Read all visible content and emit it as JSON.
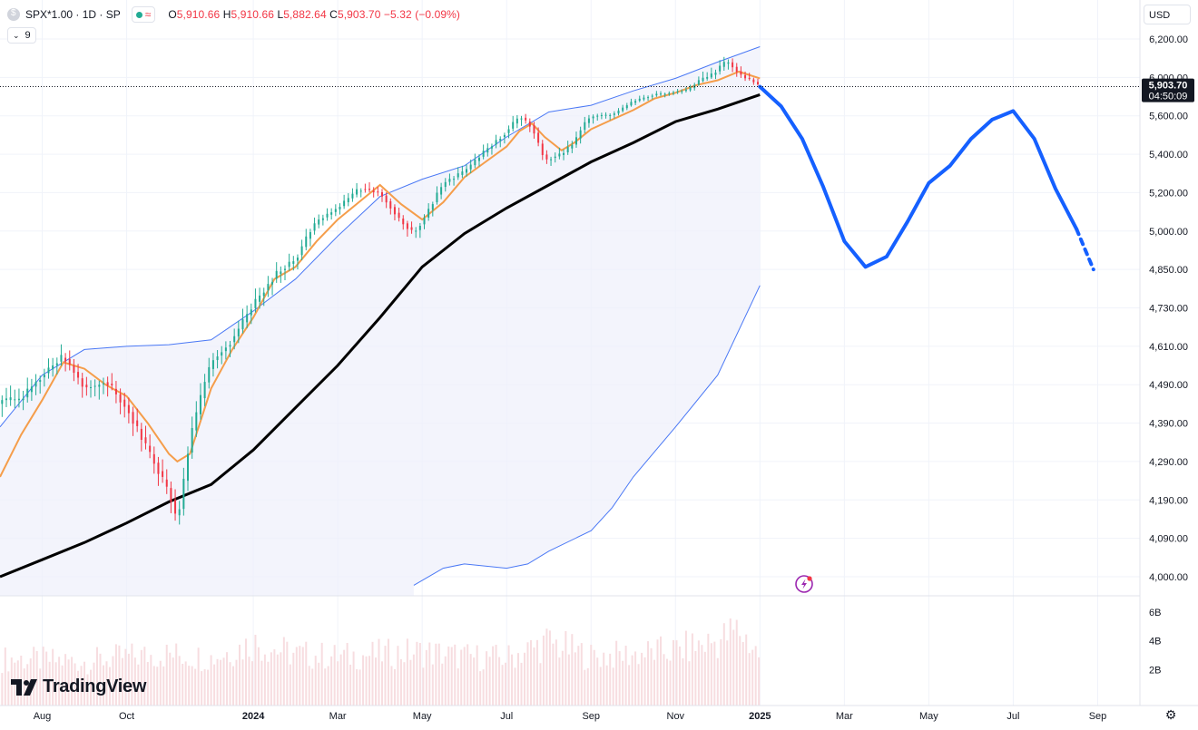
{
  "legend": {
    "symbol": "SPX*1.00 · 1D · SP",
    "open": "5,910.66",
    "high": "5,910.66",
    "low": "5,882.64",
    "close": "5,903.70",
    "change": "−5.32 (−0.09%)",
    "indicator_count": "9"
  },
  "currency": "USD",
  "price_label": {
    "value": "5,903.70",
    "countdown": "04:50:09"
  },
  "brand": "TradingView",
  "colors": {
    "up": "#22ab94",
    "down": "#f23645",
    "sma_fast": "#f59d4a",
    "sma_slow": "#000000",
    "band": "#4a78f5",
    "band_fill": "#eef0fb",
    "projection": "#1560ff",
    "grid": "#f0f3fa",
    "volume": "#f7dde0"
  },
  "chart_data": {
    "type": "line",
    "title": "SPX*1.00 · 1D · SP",
    "price_axis_ticks": [
      6200,
      6000,
      5600,
      5400,
      5200,
      5000,
      4850,
      4730,
      4610,
      4490,
      4390,
      4290,
      4190,
      4090,
      4000
    ],
    "price_axis_labels": [
      "6,200.00",
      "6,000.00",
      "5,600.00",
      "5,400.00",
      "5,200.00",
      "5,000.00",
      "4,850.00",
      "4,730.00",
      "4,610.00",
      "4,490.00",
      "4,390.00",
      "4,290.00",
      "4,190.00",
      "4,090.00",
      "4,000.00"
    ],
    "volume_axis_ticks": [
      6,
      4,
      2
    ],
    "volume_axis_labels": [
      "6B",
      "4B",
      "2B"
    ],
    "time_axis_labels": [
      "Aug",
      "Oct",
      "2024",
      "Mar",
      "May",
      "Jul",
      "Sep",
      "Nov",
      "2025",
      "Mar",
      "May",
      "Jul",
      "Sep"
    ],
    "time_axis_bold": [
      false,
      false,
      true,
      false,
      false,
      false,
      false,
      false,
      true,
      false,
      false,
      false,
      false
    ],
    "time_axis_t": [
      1,
      3,
      6,
      8,
      10,
      12,
      14,
      16,
      18,
      20,
      22,
      24,
      26
    ],
    "time_axis_note": "t in months since July 2023",
    "ylim": [
      3980,
      6260
    ],
    "xlim": [
      0.0,
      27.0
    ],
    "grid": true,
    "series": [
      {
        "key": "price",
        "x": [
          0.5,
          1.0,
          1.5,
          2.0,
          2.5,
          3.0,
          3.5,
          4.0,
          4.2,
          4.5,
          5.0,
          5.5,
          6.0,
          6.5,
          7.0,
          7.5,
          8.0,
          8.5,
          9.0,
          9.5,
          9.8,
          10.0,
          10.5,
          11.0,
          11.5,
          12.0,
          12.3,
          12.6,
          12.9,
          13.3,
          13.6,
          13.8,
          14.0,
          14.5,
          15.0,
          15.5,
          16.0,
          16.3,
          16.6,
          16.9,
          17.2,
          17.5,
          17.8,
          18.0
        ],
        "y": [
          4450,
          4520,
          4580,
          4480,
          4500,
          4430,
          4320,
          4210,
          4130,
          4350,
          4560,
          4630,
          4740,
          4830,
          4890,
          5050,
          5120,
          5220,
          5200,
          5050,
          4990,
          5050,
          5250,
          5310,
          5420,
          5520,
          5600,
          5540,
          5370,
          5400,
          5460,
          5550,
          5600,
          5610,
          5750,
          5820,
          5850,
          5870,
          5980,
          6020,
          6090,
          6020,
          5970,
          5903.7
        ]
      },
      {
        "key": "sma_fast",
        "x": [
          0.0,
          0.5,
          1.0,
          1.5,
          2.0,
          2.5,
          3.0,
          3.5,
          4.0,
          4.2,
          4.5,
          5.0,
          5.5,
          6.0,
          6.5,
          7.0,
          7.5,
          8.0,
          8.5,
          9.0,
          9.5,
          10.0,
          10.5,
          11.0,
          11.5,
          12.0,
          12.3,
          12.6,
          12.9,
          13.3,
          13.6,
          14.0,
          14.5,
          15.0,
          15.5,
          16.0,
          16.5,
          17.0,
          17.5,
          18.0
        ],
        "y": [
          4250,
          4360,
          4450,
          4560,
          4540,
          4490,
          4460,
          4390,
          4310,
          4290,
          4310,
          4480,
          4600,
          4700,
          4820,
          4860,
          4960,
          5060,
          5150,
          5240,
          5140,
          5060,
          5150,
          5280,
          5360,
          5440,
          5520,
          5560,
          5490,
          5420,
          5460,
          5530,
          5580,
          5660,
          5780,
          5840,
          5920,
          5970,
          6030,
          5990
        ]
      },
      {
        "key": "sma_slow",
        "x": [
          0.0,
          1.0,
          2.0,
          3.0,
          4.0,
          5.0,
          6.0,
          7.0,
          8.0,
          9.0,
          10.0,
          11.0,
          12.0,
          13.0,
          14.0,
          15.0,
          16.0,
          17.0,
          18.0
        ],
        "y": [
          4000,
          4040,
          4080,
          4130,
          4185,
          4230,
          4320,
          4430,
          4550,
          4700,
          4860,
          4990,
          5120,
          5240,
          5360,
          5460,
          5570,
          5670,
          5820
        ]
      },
      {
        "key": "band_upper",
        "x": [
          0.0,
          1.0,
          2.0,
          3.0,
          4.0,
          5.0,
          6.0,
          7.0,
          8.0,
          9.0,
          10.0,
          11.0,
          12.0,
          13.0,
          14.0,
          15.0,
          16.0,
          17.0,
          18.0
        ],
        "y": [
          4380,
          4520,
          4600,
          4610,
          4615,
          4630,
          4720,
          4820,
          4980,
          5180,
          5270,
          5340,
          5490,
          5640,
          5710,
          5860,
          5990,
          6080,
          6160
        ]
      },
      {
        "key": "band_lower",
        "x": [
          9.8,
          10.5,
          11.0,
          12.0,
          12.5,
          13.0,
          14.0,
          14.5,
          15.0,
          16.0,
          17.0,
          18.0
        ],
        "y": [
          3980,
          4020,
          4030,
          4020,
          4030,
          4060,
          4110,
          4170,
          4250,
          4380,
          4520,
          4800
        ]
      },
      {
        "key": "projection",
        "x": [
          18.0,
          18.5,
          19.0,
          19.5,
          20.0,
          20.5,
          21.0,
          21.5,
          22.0,
          22.5,
          23.0,
          23.5,
          24.0,
          24.5,
          25.0,
          25.5,
          25.9
        ],
        "y": [
          5903.7,
          5700,
          5480,
          5230,
          4960,
          4860,
          4900,
          5050,
          5250,
          5340,
          5480,
          5580,
          5650,
          5480,
          5220,
          5010,
          4850
        ]
      },
      {
        "key": "volume",
        "x": [
          0.5,
          2.0,
          3.0,
          4.0,
          5.0,
          6.0,
          7.0,
          8.0,
          9.0,
          10.0,
          11.0,
          12.0,
          13.0,
          14.0,
          15.0,
          16.0,
          17.0,
          17.5,
          18.0
        ],
        "y": [
          3.2,
          3.0,
          3.4,
          3.6,
          3.3,
          4.5,
          3.6,
          3.4,
          3.6,
          3.8,
          3.4,
          3.3,
          4.6,
          3.4,
          3.6,
          3.9,
          4.7,
          5.6,
          3.5
        ]
      }
    ]
  }
}
